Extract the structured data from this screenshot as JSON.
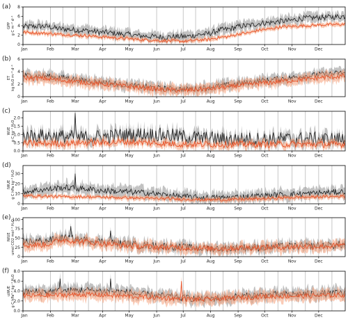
{
  "colors": {
    "black_line": "#1a1a1a",
    "grey_band": "#9a9a9a",
    "orange_line": "#e8542a",
    "orange_band": "#f5a07a",
    "gridline": "#b9b9b9"
  },
  "chart_data": [
    {
      "panel_label": "(a)",
      "type": "line",
      "ylabel": "GPP\ng C m⁻² d⁻¹",
      "ylabel_lines": [
        "GPP",
        "g C m⁻² d⁻¹"
      ],
      "ylim": [
        0,
        8
      ],
      "yticks": [
        0,
        2,
        4,
        6,
        8
      ],
      "x": "day of year (1-365)",
      "series": [
        {
          "color": "black",
          "knots": [
            3.8,
            3.9,
            3.3,
            3.0,
            2.6,
            2.2,
            1.8,
            1.6,
            1.7,
            2.2,
            3.2,
            4.0,
            4.6,
            5.0,
            5.6,
            5.8,
            6.0
          ],
          "band": 0.9,
          "noise": 0.6
        },
        {
          "color": "orange",
          "knots": [
            2.6,
            2.4,
            2.1,
            1.9,
            1.6,
            1.3,
            1.0,
            0.8,
            0.7,
            1.0,
            1.6,
            2.4,
            3.2,
            3.8,
            4.0,
            4.2,
            4.3
          ],
          "band": 0.4,
          "noise": 0.3
        }
      ]
    },
    {
      "panel_label": "(b)",
      "type": "line",
      "ylabel": "ET\nkg H₂O m⁻² d⁻¹",
      "ylabel_lines": [
        "ET",
        "kg H₂O m⁻² d⁻¹"
      ],
      "ylim": [
        0,
        6
      ],
      "yticks": [
        0,
        2,
        4,
        6
      ],
      "series": [
        {
          "color": "black",
          "knots": [
            3.4,
            3.3,
            3.0,
            2.6,
            2.3,
            1.9,
            1.6,
            1.3,
            1.2,
            1.4,
            1.8,
            2.2,
            2.6,
            2.9,
            3.3,
            3.6,
            3.8
          ],
          "band": 0.7,
          "noise": 0.45
        },
        {
          "color": "orange",
          "knots": [
            3.0,
            2.9,
            2.6,
            2.3,
            2.0,
            1.7,
            1.4,
            1.1,
            1.0,
            1.2,
            1.5,
            1.9,
            2.2,
            2.5,
            2.8,
            3.1,
            3.3
          ],
          "band": 0.7,
          "noise": 0.4
        }
      ]
    },
    {
      "panel_label": "(c)",
      "type": "line",
      "ylabel": "WUE\ng C kg⁻¹ H₂O",
      "ylabel_lines": [
        "WUE",
        "g C kg⁻¹ H₂O"
      ],
      "ylim": [
        0,
        2.4
      ],
      "yticks": [
        0,
        0.5,
        1.0,
        1.5,
        2.0
      ],
      "ytick_labels": [
        "0.0",
        "0.5",
        "1.0",
        "1.5",
        "2.0"
      ],
      "series": [
        {
          "color": "black",
          "knots": [
            0.9,
            0.9,
            0.85,
            0.8,
            0.85,
            0.95,
            1.0,
            0.95,
            0.85,
            0.75,
            0.7,
            0.7,
            0.7,
            0.7,
            0.7,
            0.7,
            0.7
          ],
          "band": 0.3,
          "noise": 0.45,
          "spike": [
            [
              60,
              2.3
            ]
          ]
        },
        {
          "color": "orange",
          "knots": [
            0.45,
            0.45,
            0.45,
            0.5,
            0.5,
            0.55,
            0.5,
            0.45,
            0.4,
            0.4,
            0.4,
            0.4,
            0.4,
            0.4,
            0.4,
            0.4,
            0.4
          ],
          "band": 0.2,
          "noise": 0.2
        }
      ]
    },
    {
      "panel_label": "(d)",
      "type": "line",
      "ylabel": "IWUE\ng C hPa kg⁻¹ H₂O",
      "ylabel_lines": [
        "IWUE",
        "g C hPa kg⁻¹ H₂O"
      ],
      "ylim": [
        0,
        38
      ],
      "yticks": [
        0,
        10,
        20,
        30
      ],
      "series": [
        {
          "color": "black",
          "knots": [
            12,
            14,
            16,
            15,
            13,
            12,
            11,
            9,
            7,
            6,
            6,
            7,
            8,
            9,
            10,
            11,
            12
          ],
          "band": 5,
          "noise": 3,
          "spike": [
            [
              60,
              30
            ]
          ]
        },
        {
          "color": "orange",
          "knots": [
            8,
            7.5,
            7,
            7,
            6.5,
            6,
            5.5,
            5,
            4.5,
            4,
            4,
            4.5,
            5,
            6,
            6.5,
            7,
            7.5
          ],
          "band": 2,
          "noise": 1.3
        }
      ]
    },
    {
      "panel_label": "(e)",
      "type": "line",
      "ylabel": "IWUE\numol CO2 mol⁻¹ H₂O",
      "ylabel_lines": [
        "IWUE",
        "umol CO2 mol⁻¹ H₂O"
      ],
      "ylim": [
        0,
        105
      ],
      "yticks": [
        0,
        25,
        50,
        75,
        100
      ],
      "series": [
        {
          "color": "black",
          "knots": [
            40,
            42,
            50,
            45,
            40,
            35,
            30,
            28,
            25,
            22,
            22,
            24,
            25,
            27,
            28,
            30,
            32
          ],
          "band": 12,
          "noise": 10,
          "spike": [
            [
              55,
              82
            ],
            [
              100,
              70
            ]
          ]
        },
        {
          "color": "orange",
          "knots": [
            30,
            32,
            45,
            40,
            35,
            30,
            27,
            25,
            24,
            22,
            22,
            24,
            25,
            26,
            27,
            28,
            30
          ],
          "band": 12,
          "noise": 8
        }
      ]
    },
    {
      "panel_label": "(f)",
      "type": "line",
      "ylabel": "uWUE\ng C hPa⁰·⁵ kg⁻¹ H₂O",
      "ylabel_lines": [
        "uWUE",
        "g C hPa⁰·⁵ kg⁻¹ H₂O"
      ],
      "ylim": [
        0,
        8
      ],
      "yticks": [
        0,
        2,
        4,
        6,
        8
      ],
      "ytick_labels": [
        "0.0",
        "2.0",
        "4.0",
        "6.0",
        "8.0"
      ],
      "series": [
        {
          "color": "black",
          "knots": [
            3.8,
            3.9,
            4.0,
            4.2,
            4.0,
            3.8,
            3.3,
            3.0,
            2.6,
            2.4,
            2.6,
            3.0,
            3.2,
            3.3,
            3.4,
            3.5,
            3.6
          ],
          "band": 1.0,
          "noise": 0.7,
          "spike": [
            [
              43,
              6.5
            ],
            [
              100,
              6.5
            ]
          ]
        },
        {
          "color": "orange",
          "knots": [
            3.0,
            3.1,
            3.2,
            3.3,
            3.2,
            3.0,
            2.8,
            2.6,
            2.4,
            2.3,
            2.5,
            2.7,
            2.9,
            3.0,
            3.0,
            3.1,
            3.2
          ],
          "band": 1.0,
          "noise": 0.5,
          "spike": [
            [
              180,
              6.0
            ]
          ]
        }
      ]
    }
  ],
  "x_axis": {
    "months": [
      "Jan",
      "Feb",
      "Mar",
      "Apr",
      "May",
      "Jun",
      "Jul",
      "Aug",
      "Sep",
      "Oct",
      "Nov",
      "Dec"
    ],
    "month_start_day": [
      1,
      32,
      60,
      91,
      121,
      152,
      182,
      213,
      244,
      274,
      305,
      335
    ],
    "extra_gridlines_day": [
      46,
      75,
      105,
      196,
      227,
      289,
      320,
      350
    ],
    "xlim": [
      1,
      365
    ]
  }
}
